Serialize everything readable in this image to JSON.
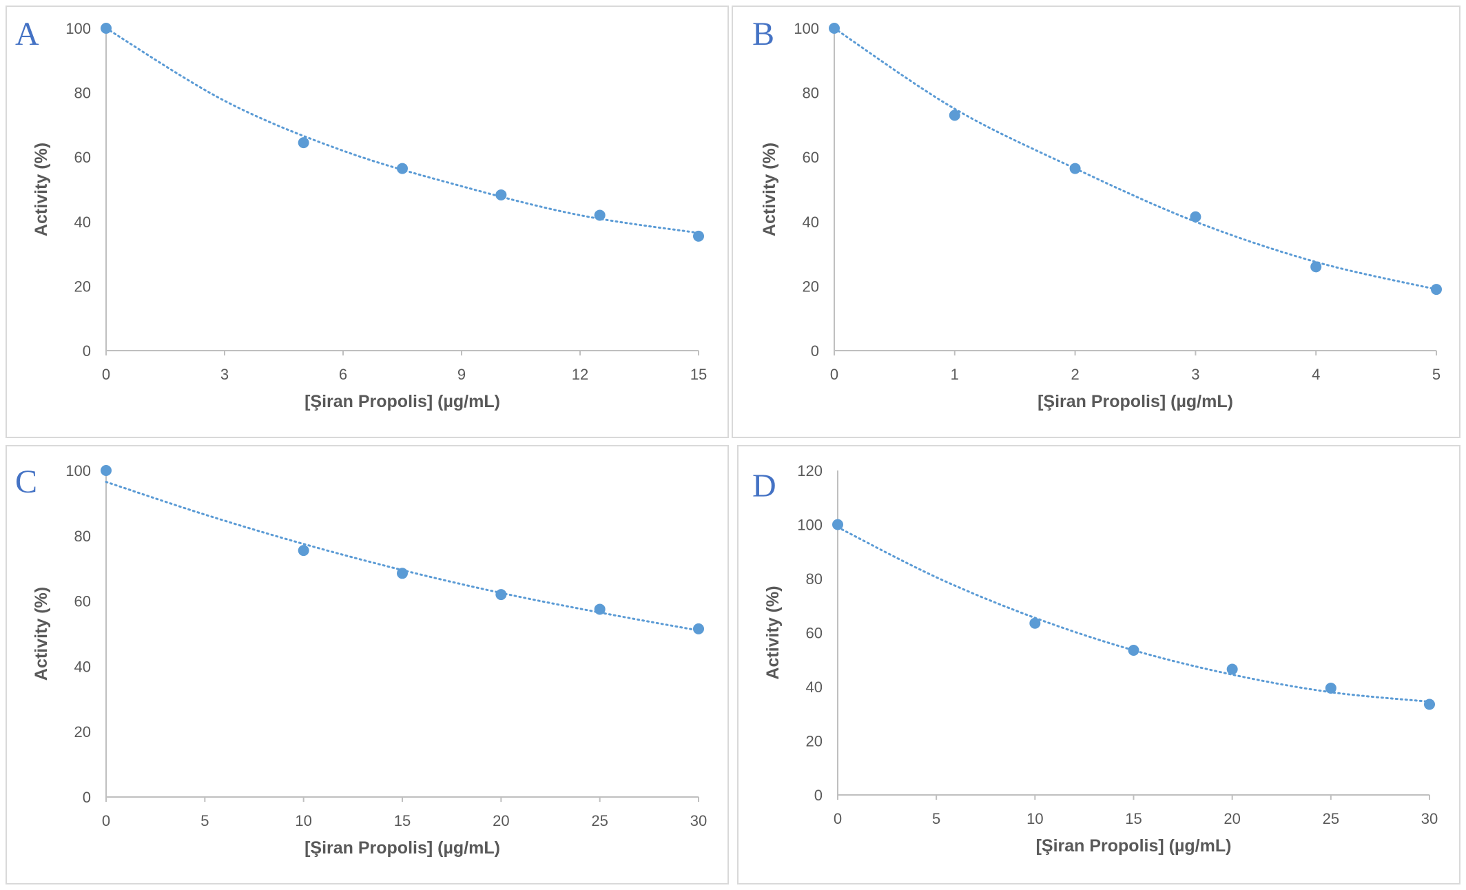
{
  "chart_data": [
    {
      "panel": "A",
      "type": "scatter",
      "xlabel": "[Şiran Propolis]   (µg/mL)",
      "ylabel": "Activity  (%)",
      "xlim": [
        0,
        15
      ],
      "ylim": [
        0,
        100
      ],
      "xticks": [
        "0",
        "3",
        "6",
        "9",
        "12",
        "15"
      ],
      "yticks": [
        "0",
        "20",
        "40",
        "60",
        "80",
        "100"
      ],
      "grid": false,
      "trendline": "polynomial, dotted",
      "series": [
        {
          "x": [
            0,
            5,
            7.5,
            10,
            12.5,
            15
          ],
          "y": [
            100,
            64.5,
            56.5,
            48.3,
            42.0,
            35.5
          ],
          "color": "#5b9bd5"
        }
      ],
      "trend": {
        "x": [
          0,
          3,
          6,
          9,
          12,
          15
        ],
        "y": [
          100,
          77.5,
          62.0,
          51.0,
          42.0,
          36.5
        ]
      }
    },
    {
      "panel": "B",
      "type": "scatter",
      "xlabel": "[Şiran Propolis]   (µg/mL)",
      "ylabel": "Activity  (%)",
      "xlim": [
        0,
        5
      ],
      "ylim": [
        0,
        100
      ],
      "xticks": [
        "0",
        "1",
        "2",
        "3",
        "4",
        "5"
      ],
      "yticks": [
        "0",
        "20",
        "40",
        "60",
        "80",
        "100"
      ],
      "grid": false,
      "trendline": "polynomial, dotted",
      "series": [
        {
          "x": [
            0,
            1,
            2,
            3,
            4,
            5
          ],
          "y": [
            100,
            73.0,
            56.5,
            41.5,
            26.0,
            19.0
          ],
          "color": "#5b9bd5"
        }
      ],
      "trend": {
        "x": [
          0,
          1,
          2,
          3,
          4,
          5
        ],
        "y": [
          100,
          75.0,
          56.5,
          40.0,
          27.5,
          19.0
        ]
      }
    },
    {
      "panel": "C",
      "type": "scatter",
      "xlabel": "[Şiran Propolis]   (µg/mL)",
      "ylabel": "Activity  (%)",
      "xlim": [
        0,
        30
      ],
      "ylim": [
        0,
        100
      ],
      "xticks": [
        "0",
        "5",
        "10",
        "15",
        "20",
        "25",
        "30"
      ],
      "yticks": [
        "0",
        "20",
        "40",
        "60",
        "80",
        "100"
      ],
      "grid": false,
      "trendline": "polynomial, dotted",
      "series": [
        {
          "x": [
            0,
            10,
            15,
            20,
            25,
            30
          ],
          "y": [
            100,
            75.5,
            68.5,
            62.0,
            57.5,
            51.5
          ],
          "color": "#5b9bd5"
        }
      ],
      "trend": {
        "x": [
          0,
          5,
          10,
          15,
          20,
          25,
          30
        ],
        "y": [
          96.5,
          86.5,
          77.5,
          69.5,
          62.5,
          56.5,
          51.0
        ]
      }
    },
    {
      "panel": "D",
      "type": "scatter",
      "xlabel": "[Şiran Propolis]   (µg/mL)",
      "ylabel": "Activity  (%)",
      "xlim": [
        0,
        30
      ],
      "ylim": [
        0,
        120
      ],
      "xticks": [
        "0",
        "5",
        "10",
        "15",
        "20",
        "25",
        "30"
      ],
      "yticks": [
        "0",
        "20",
        "40",
        "60",
        "80",
        "100",
        "120"
      ],
      "grid": false,
      "trendline": "polynomial, dotted",
      "series": [
        {
          "x": [
            0,
            10,
            15,
            20,
            25,
            30
          ],
          "y": [
            100,
            63.5,
            53.5,
            46.5,
            39.5,
            33.5
          ],
          "color": "#5b9bd5"
        }
      ],
      "trend": {
        "x": [
          0,
          5,
          10,
          15,
          20,
          25,
          30
        ],
        "y": [
          99.0,
          80.5,
          65.5,
          53.5,
          44.5,
          38.0,
          34.5
        ]
      }
    }
  ]
}
